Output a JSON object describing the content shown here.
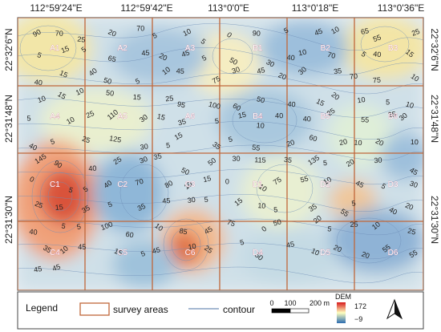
{
  "coordinates": {
    "top_longitudes": [
      "112°59'24\"E",
      "112°59'42\"E",
      "113°0'0\"E",
      "113°0'18\"E",
      "113°0'36\"E"
    ],
    "left_latitudes": [
      "22°32'6\"N",
      "22°31'48\"N",
      "22°31'30\"N"
    ],
    "right_latitudes": [
      "22°32'6\"N",
      "22°31'48\"N",
      "22°31'30\"N"
    ]
  },
  "survey_cells": [
    {
      "label": "A1"
    },
    {
      "label": "A2"
    },
    {
      "label": "A3"
    },
    {
      "label": "B1"
    },
    {
      "label": "B2"
    },
    {
      "label": "B3"
    },
    {
      "label": "A4"
    },
    {
      "label": "A5"
    },
    {
      "label": "A6"
    },
    {
      "label": "B4"
    },
    {
      "label": "B5"
    },
    {
      "label": "B6"
    },
    {
      "label": "C1"
    },
    {
      "label": "C2"
    },
    {
      "label": "C3"
    },
    {
      "label": "D1"
    },
    {
      "label": "D2"
    },
    {
      "label": "D3"
    },
    {
      "label": "C4"
    },
    {
      "label": "C5"
    },
    {
      "label": "C6"
    },
    {
      "label": "D4"
    },
    {
      "label": "D5"
    },
    {
      "label": "D6"
    }
  ],
  "contour_values": [
    "90",
    "70",
    "25",
    "20",
    "70",
    "5",
    "10",
    "5",
    "0",
    "90",
    "5",
    "45",
    "10",
    "65",
    "55",
    "25",
    "5",
    "15",
    "5",
    "65",
    "45",
    "20",
    "45",
    "5",
    "50",
    "30",
    "40",
    "10",
    "70",
    "5",
    "40",
    "15",
    "40",
    "15",
    "40",
    "50",
    "5",
    "10",
    "45",
    "75",
    "30",
    "45",
    "20",
    "30",
    "35",
    "70",
    "75",
    "10",
    "10",
    "15",
    "10",
    "50",
    "15",
    "25",
    "95",
    "100",
    "60",
    "50",
    "40",
    "15",
    "20",
    "10",
    "5",
    "10",
    "5",
    "10",
    "25",
    "110",
    "30",
    "15",
    "35",
    "5",
    "15",
    "10",
    "40",
    "40",
    "25",
    "55",
    "25",
    "30",
    "40",
    "5",
    "25",
    "125",
    "30",
    "5",
    "15",
    "35",
    "5",
    "55",
    "20",
    "60",
    "20",
    "10",
    "20",
    "10",
    "145",
    "90",
    "40",
    "25",
    "30",
    "35",
    "50",
    "50",
    "30",
    "115",
    "35",
    "135",
    "5",
    "20",
    "30",
    "45",
    "0",
    "5",
    "5",
    "40",
    "70",
    "80",
    "10",
    "15",
    "0",
    "10",
    "75",
    "55",
    "10",
    "45",
    "5",
    "30",
    "25",
    "15",
    "35",
    "5",
    "35",
    "45",
    "30",
    "5",
    "15",
    "10",
    "5",
    "35",
    "55",
    "5",
    "40",
    "20",
    "40",
    "5",
    "5",
    "100",
    "60",
    "10",
    "85",
    "45",
    "75",
    "0",
    "50",
    "20",
    "5",
    "25",
    "10",
    "25",
    "35",
    "10",
    "45",
    "15",
    "5",
    "45",
    "10",
    "25",
    "5",
    "50",
    "45",
    "10",
    "20",
    "20",
    "55",
    "55",
    "45",
    "45"
  ],
  "legend": {
    "title": "Legend",
    "survey_areas": "survey areas",
    "contour": "contour",
    "scale_labels": [
      "0",
      "100",
      "200 m"
    ],
    "dem_title": "DEM",
    "dem_max": "172",
    "dem_min": "−9"
  },
  "colors": {
    "survey_border": "#c0673a",
    "contour_line": "#6f8fb8",
    "dem_high": "#d7191c",
    "dem_mid": "#ffffbf",
    "dem_low": "#2b6cb0"
  }
}
